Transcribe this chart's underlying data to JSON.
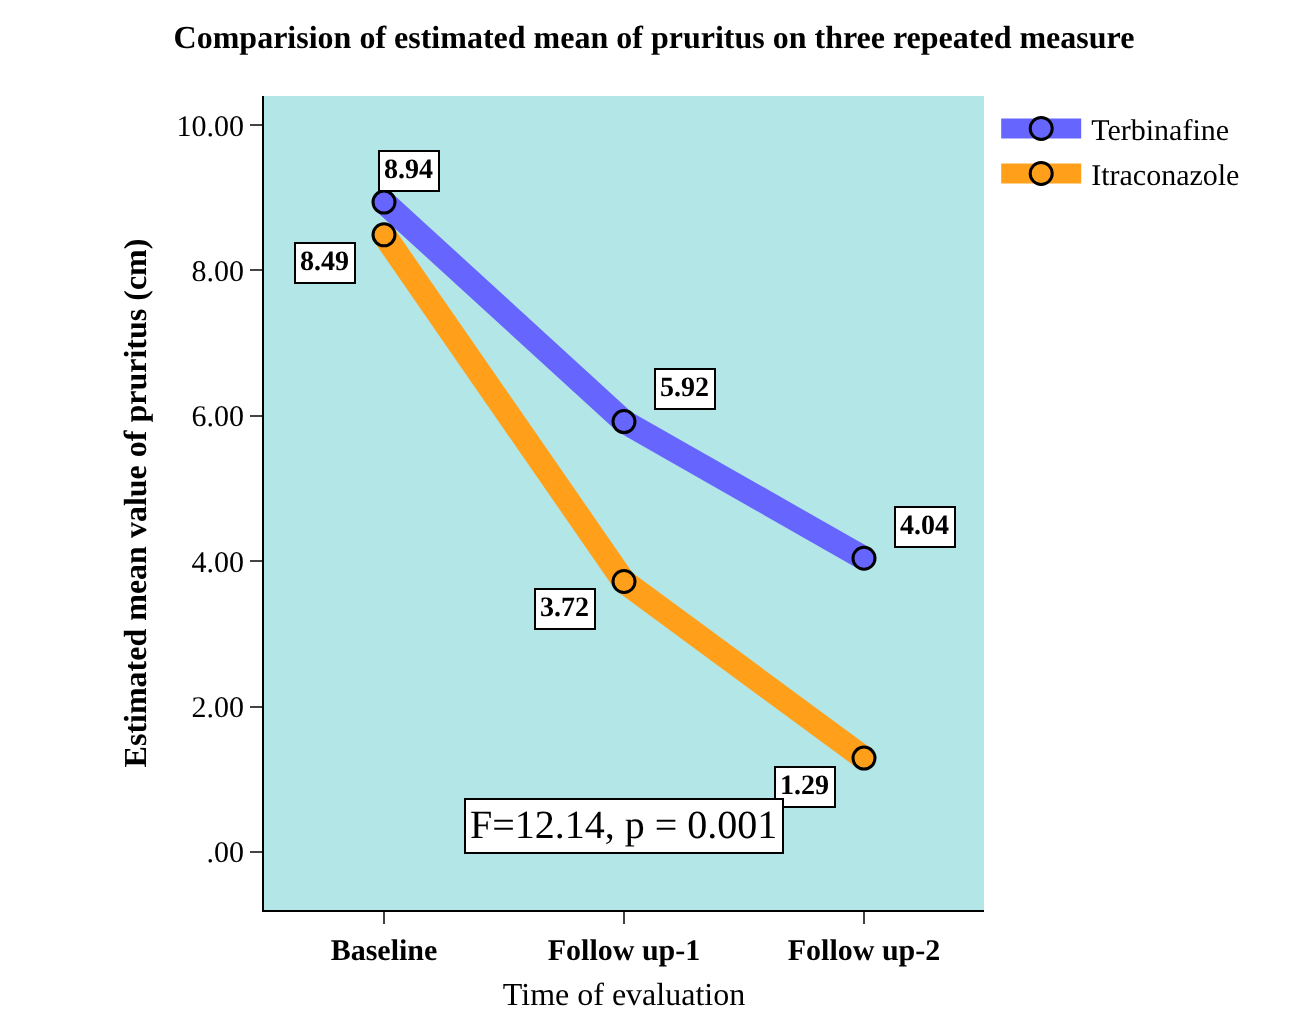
{
  "chart_data": {
    "type": "line",
    "title": "Comparision of estimated mean of pruritus on three repeated measure",
    "xlabel": "Time of evaluation",
    "ylabel": "Estimated mean value of pruritus (cm)",
    "categories": [
      "Baseline",
      "Follow up-1",
      "Follow up-2"
    ],
    "series": [
      {
        "name": "Terbinafine",
        "color": "#6666ff",
        "values": [
          8.94,
          5.92,
          4.04
        ]
      },
      {
        "name": "Itraconazole",
        "color": "#ff9f1a",
        "values": [
          8.49,
          3.72,
          1.29
        ]
      }
    ],
    "ylim": [
      -0.8,
      10.4
    ],
    "yticks": [
      {
        "value": 0,
        "label": ".00"
      },
      {
        "value": 2,
        "label": "2.00"
      },
      {
        "value": 4,
        "label": "4.00"
      },
      {
        "value": 6,
        "label": "6.00"
      },
      {
        "value": 8,
        "label": "8.00"
      },
      {
        "value": 10,
        "label": "10.00"
      }
    ],
    "data_labels": true,
    "marker": "circle",
    "line_style": "solid",
    "grid": false,
    "legend": "top right",
    "annotations": [
      "F=12.14, p = 0.001"
    ]
  }
}
